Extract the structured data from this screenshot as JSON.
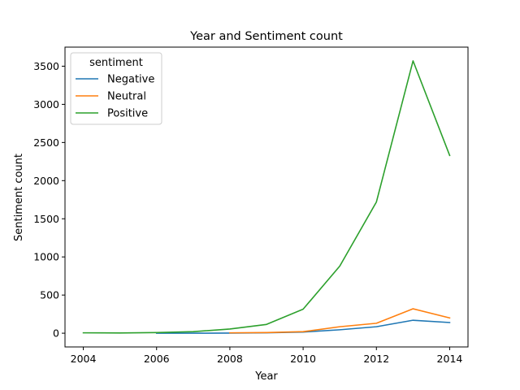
{
  "chart_data": {
    "type": "line",
    "title": "Year and Sentiment count",
    "xlabel": "Year",
    "ylabel": "Sentiment count",
    "xlim": [
      2003.5,
      2014.5
    ],
    "ylim": [
      -180,
      3750
    ],
    "xticks": [
      2004,
      2006,
      2008,
      2010,
      2012,
      2014
    ],
    "yticks": [
      0,
      500,
      1000,
      1500,
      2000,
      2500,
      3000,
      3500
    ],
    "grid": false,
    "legend": {
      "title": "sentiment",
      "position": "top-left"
    },
    "series": [
      {
        "name": "Negative",
        "color": "#1f77b4",
        "x": [
          2006,
          2007,
          2008,
          2009,
          2010,
          2011,
          2012,
          2013,
          2014
        ],
        "y": [
          0,
          0,
          2,
          5,
          15,
          45,
          85,
          170,
          140
        ]
      },
      {
        "name": "Neutral",
        "color": "#ff7f0e",
        "x": [
          2008,
          2009,
          2010,
          2011,
          2012,
          2013,
          2014
        ],
        "y": [
          5,
          8,
          20,
          85,
          130,
          320,
          200
        ]
      },
      {
        "name": "Positive",
        "color": "#2ca02c",
        "x": [
          2004,
          2005,
          2006,
          2007,
          2008,
          2009,
          2010,
          2011,
          2012,
          2013,
          2014
        ],
        "y": [
          5,
          3,
          8,
          20,
          55,
          115,
          315,
          880,
          1720,
          3570,
          2330
        ]
      }
    ]
  }
}
